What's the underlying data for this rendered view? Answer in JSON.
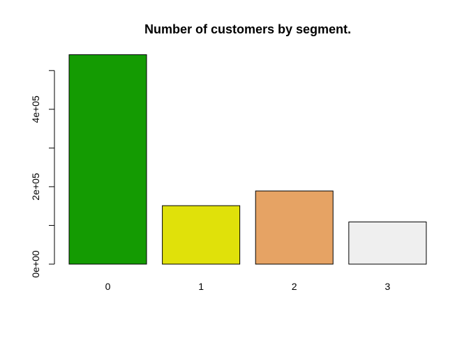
{
  "chart_data": {
    "type": "bar",
    "title": "Number of customers by segment.",
    "xlabel": "",
    "ylabel": "",
    "categories": [
      "0",
      "1",
      "2",
      "3"
    ],
    "values": [
      541000,
      151000,
      189000,
      109000
    ],
    "colors": [
      "#149b02",
      "#e0e10a",
      "#e6a364",
      "#efefef"
    ],
    "ylim": [
      0,
      500000
    ],
    "yticks": [
      0,
      200000,
      400000
    ],
    "ytick_labels": [
      "0e+00",
      "2e+05",
      "4e+05"
    ],
    "ytick_minor": [
      100000,
      300000,
      500000
    ],
    "grid": false,
    "legend": "none"
  }
}
